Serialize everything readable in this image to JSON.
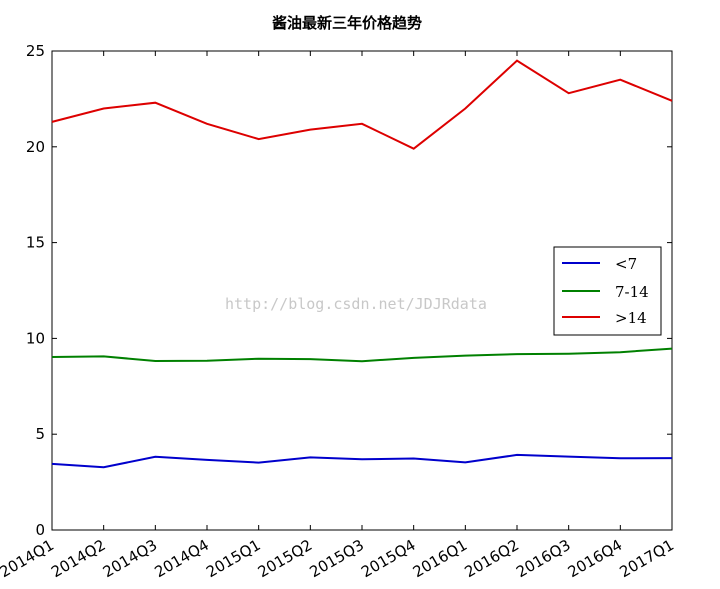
{
  "chart_data": {
    "type": "line",
    "title": "酱油最新三年价格趋势",
    "categories": [
      "2014Q1",
      "2014Q2",
      "2014Q3",
      "2014Q4",
      "2015Q1",
      "2015Q2",
      "2015Q3",
      "2015Q4",
      "2016Q1",
      "2016Q2",
      "2016Q3",
      "2016Q4",
      "2017Q1"
    ],
    "ylim": [
      0,
      25
    ],
    "yticks": [
      "0",
      "5",
      "10",
      "15",
      "20",
      "25"
    ],
    "grid": false,
    "legend_position": "right",
    "series": [
      {
        "name": "<7",
        "color": "#0000cc",
        "values": [
          3.45,
          3.28,
          3.82,
          3.66,
          3.52,
          3.79,
          3.69,
          3.73,
          3.53,
          3.92,
          3.83,
          3.74,
          3.75
        ]
      },
      {
        "name": "7-14",
        "color": "#008000",
        "values": [
          9.03,
          9.06,
          8.82,
          8.83,
          8.94,
          8.92,
          8.81,
          8.98,
          9.1,
          9.18,
          9.2,
          9.28,
          9.47
        ]
      },
      {
        "name": ">14",
        "color": "#dd0000",
        "values": [
          21.3,
          22.0,
          22.3,
          21.2,
          20.4,
          20.9,
          21.2,
          19.9,
          22.0,
          24.5,
          22.8,
          23.5,
          22.4
        ]
      }
    ]
  },
  "watermark": "http://blog.csdn.net/JDJRdata"
}
